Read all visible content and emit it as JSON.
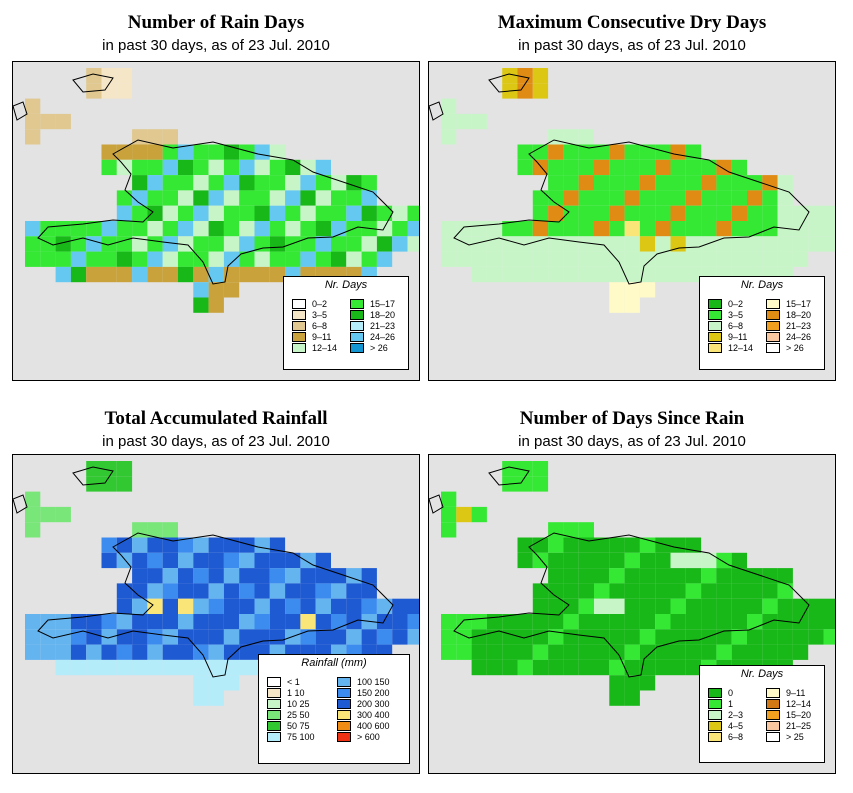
{
  "panels": [
    {
      "id": "rain-days",
      "title": "Number of Rain Days",
      "subtitle": "in past 30 days, as of  23 Jul. 2010",
      "legend": {
        "title": "Nr. Days",
        "items": [
          {
            "label": "0–2",
            "color": "#ffffff"
          },
          {
            "label": "3–5",
            "color": "#f5e6c8"
          },
          {
            "label": "6–8",
            "color": "#e0c890"
          },
          {
            "label": "9–11",
            "color": "#c9a23c"
          },
          {
            "label": "12–14",
            "color": "#c8f5c8"
          },
          {
            "label": "15–17",
            "color": "#34e834"
          },
          {
            "label": "18–20",
            "color": "#18b818"
          },
          {
            "label": "21–23",
            "color": "#b4ecfa"
          },
          {
            "label": "24–26",
            "color": "#64c8f0"
          },
          {
            "label": "> 26",
            "color": "#1496d2"
          }
        ]
      }
    },
    {
      "id": "dry-days",
      "title": "Maximum Consecutive Dry Days",
      "subtitle": "in past 30 days, as of  23 Jul. 2010",
      "legend": {
        "title": "Nr. Days",
        "items": [
          {
            "label": "0–2",
            "color": "#18b818"
          },
          {
            "label": "3–5",
            "color": "#34e834"
          },
          {
            "label": "6–8",
            "color": "#c8f5c8"
          },
          {
            "label": "9–11",
            "color": "#dcc814"
          },
          {
            "label": "12–14",
            "color": "#fae678"
          },
          {
            "label": "15–17",
            "color": "#fffac8"
          },
          {
            "label": "18–20",
            "color": "#e08c14"
          },
          {
            "label": "21–23",
            "color": "#f0a01e"
          },
          {
            "label": "24–26",
            "color": "#fac8a0"
          },
          {
            "label": "> 26",
            "color": "#ffffff"
          }
        ]
      }
    },
    {
      "id": "rainfall",
      "title": "Total Accumulated Rainfall",
      "subtitle": "in past 30 days, as of  23 Jul. 2010",
      "legend": {
        "title": "Rainfall (mm)",
        "items": [
          {
            "label": "< 1",
            "color": "#ffffff"
          },
          {
            "label": "1     10",
            "color": "#f5e6c8"
          },
          {
            "label": "10    25",
            "color": "#c8f5c8"
          },
          {
            "label": "25    50",
            "color": "#78e678"
          },
          {
            "label": "50    75",
            "color": "#32c832"
          },
          {
            "label": "75   100",
            "color": "#b4ecfa"
          },
          {
            "label": "100  150",
            "color": "#64b4f0"
          },
          {
            "label": "150  200",
            "color": "#3c8cf0"
          },
          {
            "label": "200  300",
            "color": "#1e5ad2"
          },
          {
            "label": "300  400",
            "color": "#fae678"
          },
          {
            "label": "400  600",
            "color": "#f08c14"
          },
          {
            "label": "> 600",
            "color": "#f03214"
          }
        ]
      }
    },
    {
      "id": "since-rain",
      "title": "Number of Days Since Rain",
      "subtitle": "in past 30 days, as of  23 Jul. 2010",
      "legend": {
        "title": "Nr. Days",
        "items": [
          {
            "label": "0",
            "color": "#18b818"
          },
          {
            "label": "1",
            "color": "#34e834"
          },
          {
            "label": "2–3",
            "color": "#c8f5c8"
          },
          {
            "label": "4–5",
            "color": "#dcc814"
          },
          {
            "label": "6–8",
            "color": "#fae678"
          },
          {
            "label": "9–11",
            "color": "#fffac8"
          },
          {
            "label": "12–14",
            "color": "#d27814"
          },
          {
            "label": "15–20",
            "color": "#f0a01e"
          },
          {
            "label": "21–25",
            "color": "#fac8a0"
          },
          {
            "label": "> 25",
            "color": "#ffffff"
          }
        ]
      }
    }
  ]
}
